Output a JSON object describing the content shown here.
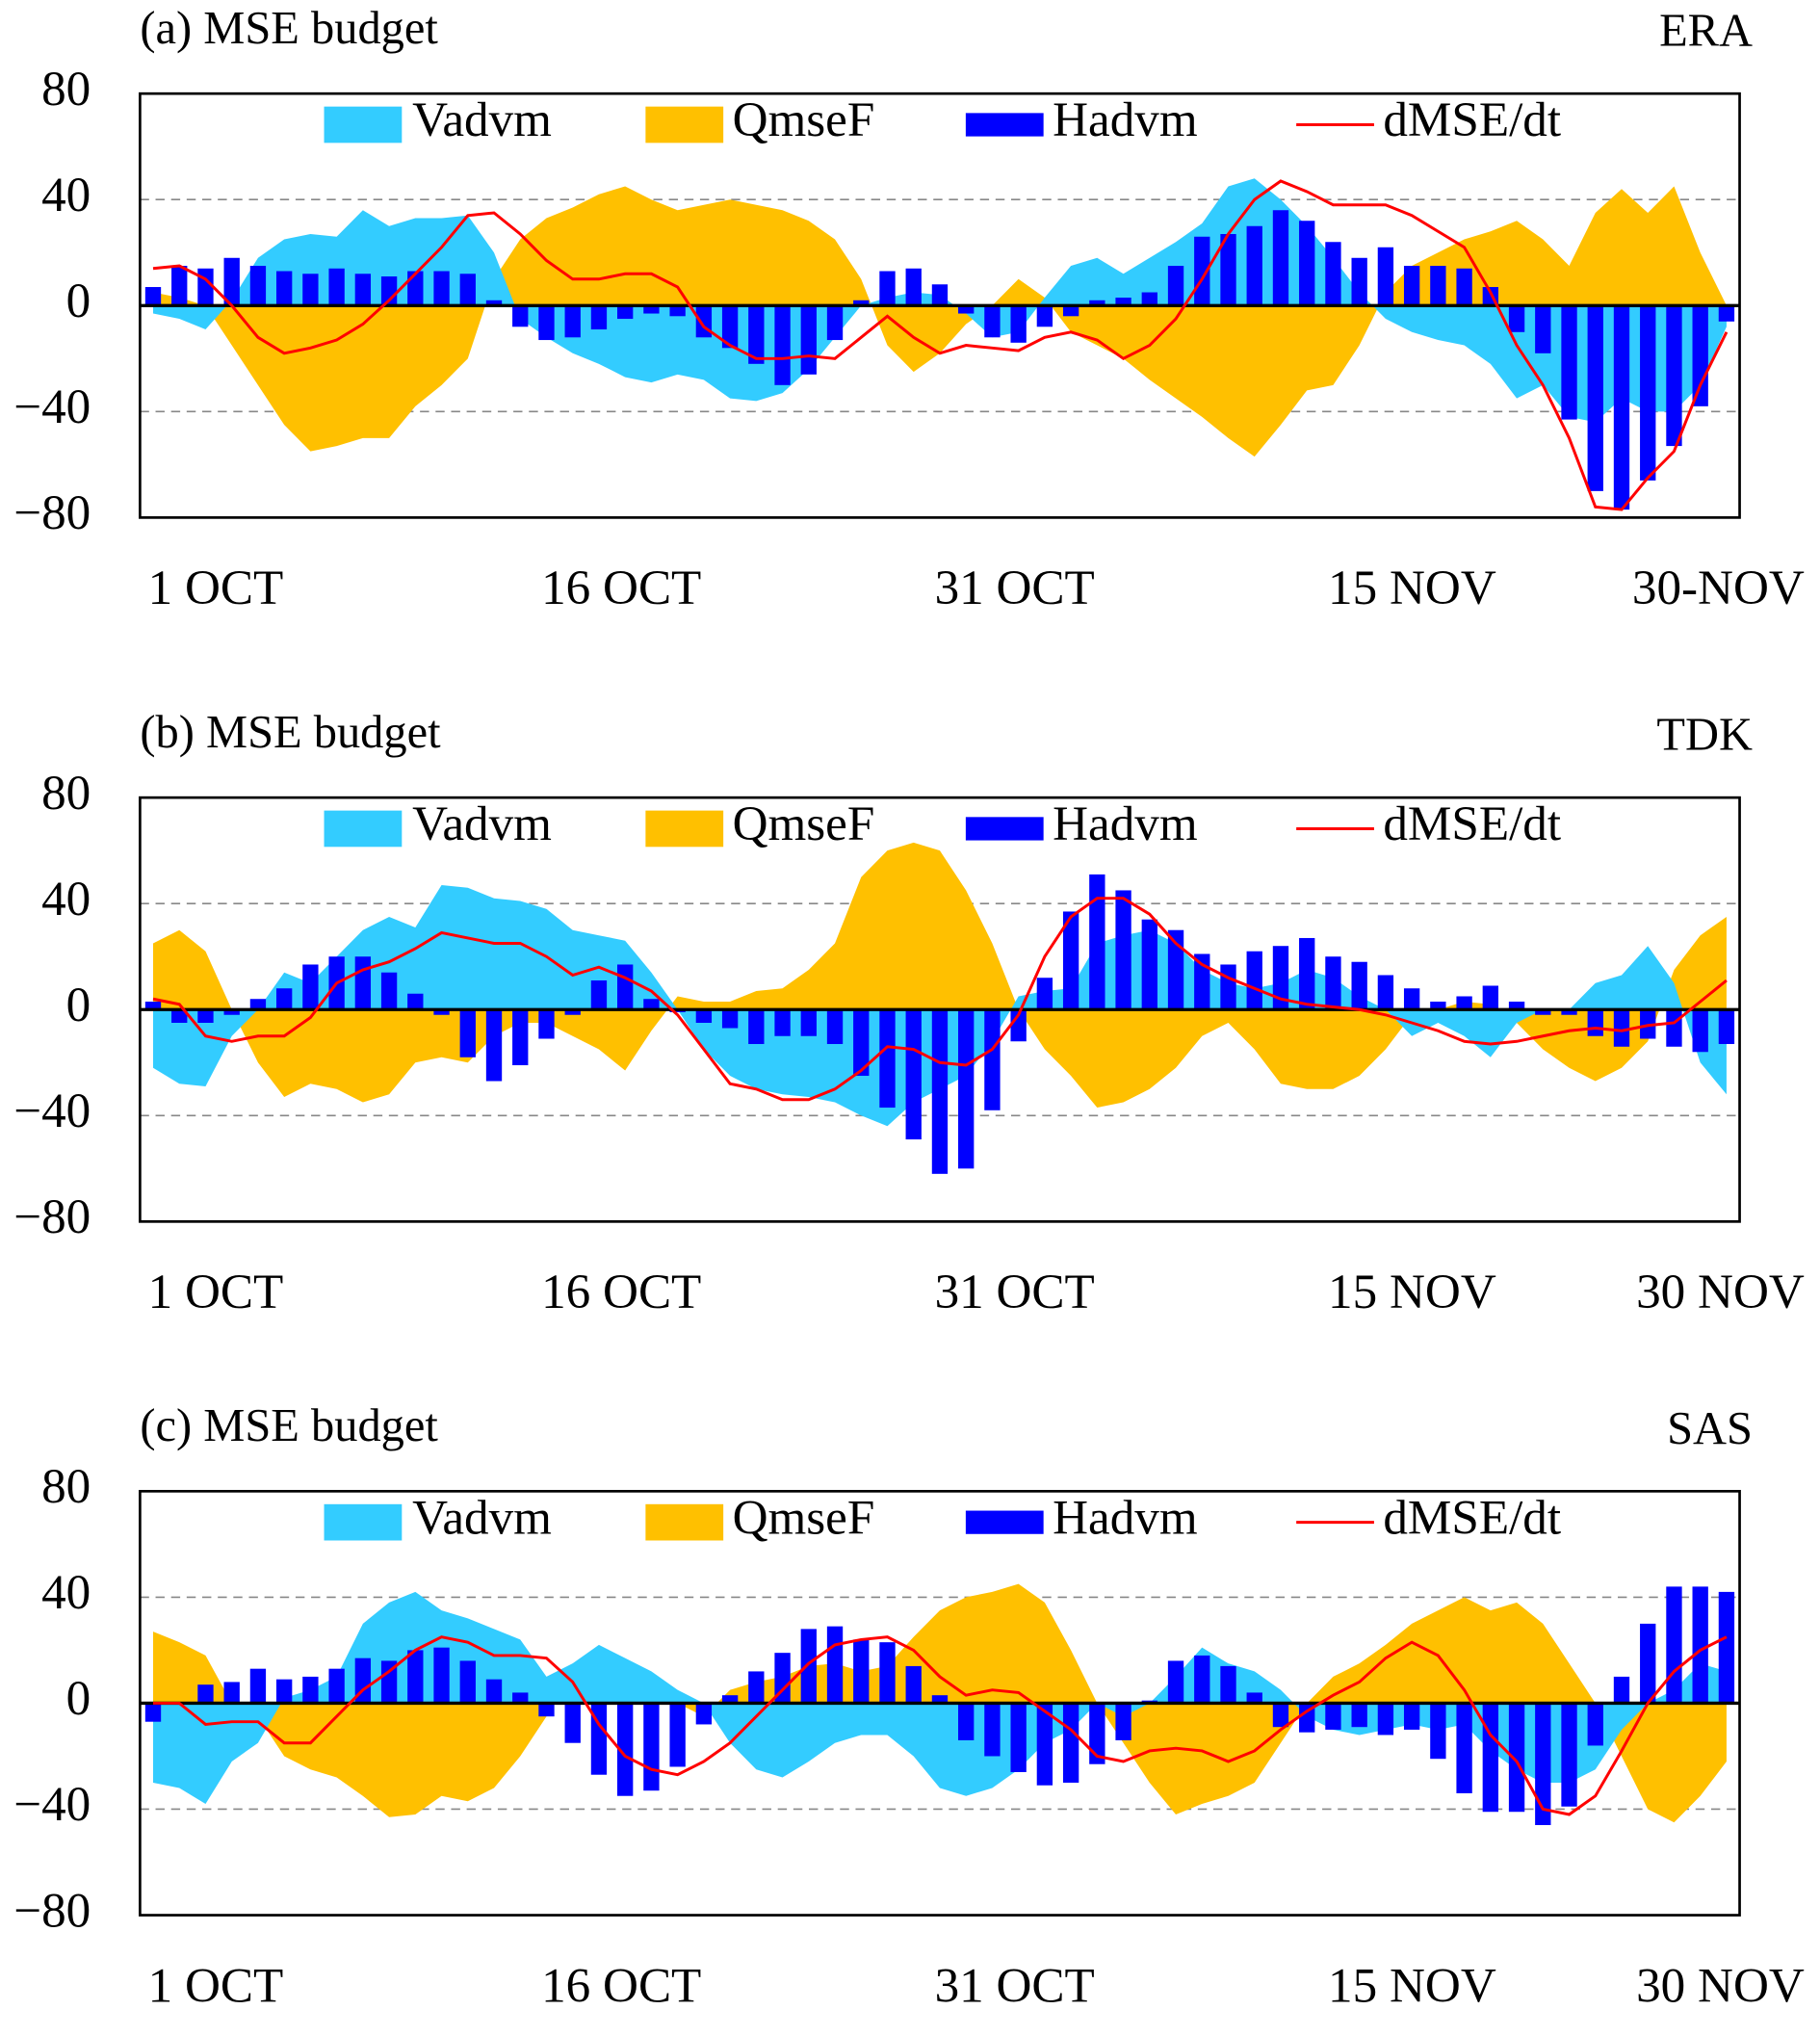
{
  "chart_data": [
    {
      "type": "combo",
      "title": "(a) MSE budget",
      "label": "ERA",
      "x": [
        0,
        1,
        2,
        3,
        4,
        5,
        6,
        7,
        8,
        9,
        10,
        11,
        12,
        13,
        14,
        15,
        16,
        17,
        18,
        19,
        20,
        21,
        22,
        23,
        24,
        25,
        26,
        27,
        28,
        29,
        30,
        31,
        32,
        33,
        34,
        35,
        36,
        37,
        38,
        39,
        40,
        41,
        42,
        43,
        44,
        45,
        46,
        47,
        48,
        49,
        50,
        51,
        52,
        53,
        54,
        55,
        56,
        57,
        58,
        59,
        60
      ],
      "xlim": [
        -0.5,
        60.5
      ],
      "xticks": [
        {
          "value": 0,
          "label": "1 OCT"
        },
        {
          "value": 15,
          "label": "16 OCT"
        },
        {
          "value": 30,
          "label": "31 OCT"
        },
        {
          "value": 45,
          "label": "15 NOV"
        },
        {
          "value": 60,
          "label": "30-NOV"
        }
      ],
      "ylim": [
        -80,
        80
      ],
      "yticks": [
        {
          "value": -80,
          "label": "−80"
        },
        {
          "value": -40,
          "label": "−40"
        },
        0,
        40,
        80
      ],
      "grid": true,
      "series": [
        {
          "name": "Vadvm",
          "type": "area",
          "color": "#33ccff",
          "values": [
            -3,
            -5,
            -9,
            2,
            18,
            25,
            27,
            26,
            36,
            30,
            33,
            33,
            34,
            20,
            -5,
            -12,
            -18,
            -22,
            -27,
            -29,
            -26,
            -28,
            -35,
            -36,
            -33,
            -24,
            -12,
            0,
            3,
            5,
            4,
            -3,
            -12,
            -10,
            3,
            15,
            18,
            12,
            18,
            24,
            31,
            45,
            48,
            40,
            30,
            18,
            5,
            -5,
            -10,
            -13,
            -15,
            -22,
            -35,
            -30,
            -42,
            -44,
            -35,
            -40,
            -40,
            -30,
            -8
          ]
        },
        {
          "name": "QmseF",
          "type": "area",
          "color": "#ffc000",
          "values": [
            5,
            3,
            0,
            -15,
            -30,
            -45,
            -55,
            -53,
            -50,
            -50,
            -38,
            -30,
            -20,
            10,
            25,
            33,
            37,
            42,
            45,
            40,
            36,
            38,
            40,
            38,
            36,
            32,
            25,
            10,
            -15,
            -25,
            -18,
            -7,
            0,
            10,
            3,
            -10,
            -15,
            -20,
            -28,
            -35,
            -42,
            -50,
            -57,
            -45,
            -32,
            -30,
            -15,
            5,
            15,
            20,
            25,
            28,
            32,
            25,
            15,
            35,
            44,
            35,
            45,
            20,
            0
          ]
        },
        {
          "name": "Hadvm",
          "type": "bar",
          "color": "#0000ff",
          "values": [
            7,
            15,
            14,
            18,
            15,
            13,
            12,
            14,
            12,
            11,
            13,
            13,
            12,
            2,
            -8,
            -13,
            -12,
            -9,
            -5,
            -3,
            -4,
            -12,
            -16,
            -22,
            -30,
            -26,
            -13,
            2,
            13,
            14,
            8,
            -3,
            -12,
            -14,
            -8,
            -4,
            2,
            3,
            5,
            15,
            26,
            27,
            30,
            36,
            32,
            24,
            18,
            22,
            15,
            15,
            14,
            7,
            -10,
            -18,
            -43,
            -70,
            -77,
            -66,
            -53,
            -38,
            -6
          ]
        },
        {
          "name": "dMSE/dt",
          "type": "line",
          "color": "#ff0000",
          "values": [
            14,
            15,
            10,
            0,
            -12,
            -18,
            -16,
            -13,
            -7,
            2,
            12,
            22,
            34,
            35,
            27,
            17,
            10,
            10,
            12,
            12,
            7,
            -8,
            -15,
            -20,
            -20,
            -19,
            -20,
            -12,
            -4,
            -12,
            -18,
            -15,
            -16,
            -17,
            -12,
            -10,
            -13,
            -20,
            -15,
            -5,
            10,
            27,
            40,
            47,
            43,
            38,
            38,
            38,
            34,
            28,
            22,
            5,
            -15,
            -30,
            -50,
            -76,
            -77,
            -65,
            -55,
            -30,
            -10
          ]
        }
      ]
    },
    {
      "type": "combo",
      "title": "(b) MSE budget",
      "label": "TDK",
      "x": [
        0,
        1,
        2,
        3,
        4,
        5,
        6,
        7,
        8,
        9,
        10,
        11,
        12,
        13,
        14,
        15,
        16,
        17,
        18,
        19,
        20,
        21,
        22,
        23,
        24,
        25,
        26,
        27,
        28,
        29,
        30,
        31,
        32,
        33,
        34,
        35,
        36,
        37,
        38,
        39,
        40,
        41,
        42,
        43,
        44,
        45,
        46,
        47,
        48,
        49,
        50,
        51,
        52,
        53,
        54,
        55,
        56,
        57,
        58,
        59,
        60
      ],
      "xlim": [
        -0.5,
        60.5
      ],
      "xticks": [
        {
          "value": 0,
          "label": "1 OCT"
        },
        {
          "value": 15,
          "label": "16 OCT"
        },
        {
          "value": 30,
          "label": "31 OCT"
        },
        {
          "value": 45,
          "label": "15 NOV"
        },
        {
          "value": 60,
          "label": "30 NOV"
        }
      ],
      "ylim": [
        -80,
        80
      ],
      "yticks": [
        {
          "value": -80,
          "label": "−80"
        },
        {
          "value": -40,
          "label": "−40"
        },
        0,
        40,
        80
      ],
      "grid": true,
      "series": [
        {
          "name": "Vadvm",
          "type": "area",
          "color": "#33ccff",
          "values": [
            -22,
            -28,
            -29,
            -10,
            0,
            14,
            10,
            20,
            30,
            35,
            31,
            47,
            46,
            42,
            41,
            38,
            30,
            28,
            26,
            14,
            0,
            -15,
            -25,
            -30,
            -32,
            -33,
            -35,
            -40,
            -44,
            -35,
            -30,
            -25,
            -12,
            5,
            7,
            8,
            25,
            28,
            30,
            25,
            15,
            10,
            8,
            10,
            15,
            12,
            5,
            0,
            -10,
            -5,
            -10,
            -18,
            -5,
            0,
            0,
            10,
            13,
            24,
            10,
            -20,
            -32
          ]
        },
        {
          "name": "QmseF",
          "type": "area",
          "color": "#ffc000",
          "values": [
            25,
            30,
            22,
            0,
            -20,
            -33,
            -28,
            -30,
            -35,
            -32,
            -20,
            -18,
            -20,
            -10,
            -5,
            -5,
            -10,
            -15,
            -23,
            -8,
            5,
            3,
            3,
            7,
            8,
            15,
            25,
            50,
            60,
            63,
            60,
            45,
            25,
            0,
            -15,
            -25,
            -37,
            -35,
            -30,
            -22,
            -10,
            -5,
            -15,
            -28,
            -30,
            -30,
            -25,
            -15,
            -2,
            0,
            3,
            2,
            -5,
            -15,
            -22,
            -27,
            -22,
            -12,
            15,
            28,
            35
          ]
        },
        {
          "name": "Hadvm",
          "type": "bar",
          "color": "#0000ff",
          "values": [
            3,
            -5,
            -5,
            -2,
            4,
            8,
            17,
            20,
            20,
            14,
            6,
            -2,
            -18,
            -27,
            -21,
            -11,
            -2,
            11,
            17,
            4,
            -1,
            -5,
            -7,
            -13,
            -10,
            -10,
            -13,
            -25,
            -37,
            -49,
            -62,
            -60,
            -38,
            -12,
            12,
            37,
            51,
            45,
            34,
            30,
            21,
            17,
            22,
            24,
            27,
            20,
            18,
            13,
            8,
            3,
            5,
            9,
            3,
            -2,
            -2,
            -10,
            -14,
            -11,
            -14,
            -16,
            -13
          ]
        },
        {
          "name": "dMSE/dt",
          "type": "line",
          "color": "#ff0000",
          "values": [
            4,
            2,
            -10,
            -12,
            -10,
            -10,
            -3,
            10,
            15,
            18,
            23,
            29,
            27,
            25,
            25,
            20,
            13,
            16,
            12,
            7,
            -2,
            -15,
            -28,
            -30,
            -34,
            -34,
            -30,
            -23,
            -14,
            -15,
            -20,
            -21,
            -15,
            -2,
            20,
            35,
            42,
            42,
            36,
            25,
            17,
            12,
            8,
            4,
            2,
            1,
            0,
            -2,
            -5,
            -8,
            -12,
            -13,
            -12,
            -10,
            -8,
            -7,
            -8,
            -6,
            -5,
            3,
            11
          ]
        }
      ]
    },
    {
      "type": "combo",
      "title": "(c) MSE budget",
      "label": "SAS",
      "x": [
        0,
        1,
        2,
        3,
        4,
        5,
        6,
        7,
        8,
        9,
        10,
        11,
        12,
        13,
        14,
        15,
        16,
        17,
        18,
        19,
        20,
        21,
        22,
        23,
        24,
        25,
        26,
        27,
        28,
        29,
        30,
        31,
        32,
        33,
        34,
        35,
        36,
        37,
        38,
        39,
        40,
        41,
        42,
        43,
        44,
        45,
        46,
        47,
        48,
        49,
        50,
        51,
        52,
        53,
        54,
        55,
        56,
        57,
        58,
        59,
        60
      ],
      "xlim": [
        -0.5,
        60.5
      ],
      "xticks": [
        {
          "value": 0,
          "label": "1 OCT"
        },
        {
          "value": 15,
          "label": "16 OCT"
        },
        {
          "value": 30,
          "label": "31 OCT"
        },
        {
          "value": 45,
          "label": "15 NOV"
        },
        {
          "value": 60,
          "label": "30 NOV"
        }
      ],
      "ylim": [
        -80,
        80
      ],
      "yticks": [
        {
          "value": -80,
          "label": "−80"
        },
        {
          "value": -40,
          "label": "−40"
        },
        0,
        40,
        80
      ],
      "grid": true,
      "series": [
        {
          "name": "Vadvm",
          "type": "area",
          "color": "#33ccff",
          "values": [
            -30,
            -32,
            -38,
            -22,
            -15,
            2,
            5,
            10,
            30,
            38,
            42,
            35,
            32,
            28,
            24,
            10,
            15,
            22,
            17,
            12,
            5,
            0,
            -15,
            -25,
            -28,
            -22,
            -15,
            -12,
            -12,
            -20,
            -32,
            -35,
            -32,
            -25,
            -15,
            -10,
            0,
            -5,
            0,
            10,
            21,
            15,
            12,
            5,
            -5,
            -10,
            -12,
            -10,
            -8,
            -10,
            -8,
            -18,
            -25,
            -30,
            -30,
            -25,
            -10,
            0,
            5,
            15,
            12
          ]
        },
        {
          "name": "QmseF",
          "type": "area",
          "color": "#ffc000",
          "values": [
            27,
            23,
            18,
            0,
            -5,
            -20,
            -25,
            -28,
            -35,
            -43,
            -42,
            -35,
            -37,
            -32,
            -20,
            -5,
            10,
            5,
            5,
            3,
            0,
            -5,
            5,
            8,
            10,
            14,
            15,
            12,
            14,
            25,
            35,
            40,
            42,
            45,
            38,
            20,
            0,
            -15,
            -30,
            -42,
            -38,
            -35,
            -30,
            -15,
            0,
            10,
            15,
            22,
            30,
            35,
            40,
            35,
            38,
            30,
            15,
            0,
            -20,
            -40,
            -45,
            -35,
            -22
          ]
        },
        {
          "name": "Hadvm",
          "type": "bar",
          "color": "#0000ff",
          "values": [
            -7,
            0,
            7,
            8,
            13,
            9,
            10,
            13,
            17,
            16,
            20,
            21,
            16,
            9,
            4,
            -5,
            -15,
            -27,
            -35,
            -33,
            -24,
            -8,
            3,
            12,
            19,
            28,
            29,
            24,
            23,
            14,
            3,
            -14,
            -20,
            -26,
            -31,
            -30,
            -23,
            -14,
            1,
            16,
            18,
            14,
            4,
            -9,
            -11,
            -10,
            -9,
            -12,
            -10,
            -21,
            -34,
            -41,
            -41,
            -46,
            -39,
            -16,
            10,
            30,
            44,
            44,
            42
          ]
        },
        {
          "name": "dMSE/dt",
          "type": "line",
          "color": "#ff0000",
          "values": [
            0,
            0,
            -8,
            -7,
            -7,
            -15,
            -15,
            -5,
            5,
            12,
            20,
            25,
            23,
            18,
            18,
            17,
            8,
            -8,
            -20,
            -25,
            -27,
            -22,
            -15,
            -5,
            5,
            15,
            22,
            24,
            25,
            20,
            10,
            3,
            5,
            4,
            -3,
            -10,
            -20,
            -22,
            -18,
            -17,
            -18,
            -22,
            -18,
            -10,
            -3,
            3,
            8,
            17,
            23,
            18,
            5,
            -12,
            -22,
            -40,
            -42,
            -35,
            -18,
            0,
            12,
            20,
            25
          ]
        }
      ]
    }
  ]
}
